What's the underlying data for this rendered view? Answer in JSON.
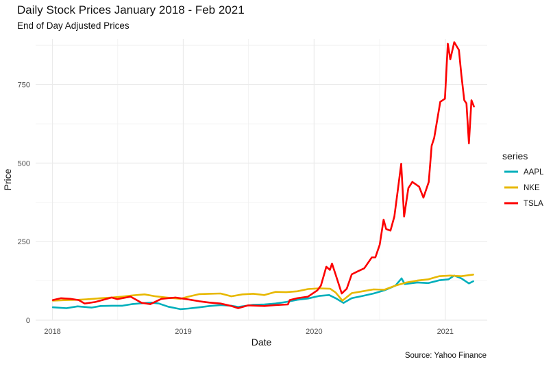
{
  "chart_data": {
    "type": "line",
    "title": "Daily Stock Prices January 2018 - Feb 2021",
    "subtitle": "End of Day Adjusted Prices",
    "caption": "Source: Yahoo Finance",
    "xlabel": "Date",
    "ylabel": "Price",
    "xlim": [
      "2017-11-15",
      "2021-04-28"
    ],
    "ylim": [
      0,
      895
    ],
    "x_ticks": [
      "2018",
      "2019",
      "2020",
      "2021"
    ],
    "y_ticks": [
      0,
      250,
      500,
      750
    ],
    "grid": true,
    "legend": {
      "title": "series",
      "position": "right"
    },
    "series": [
      {
        "name": "AAPL",
        "color": "#00AFBB",
        "points": [
          [
            "2018-01-02",
            41
          ],
          [
            "2018-02-09",
            38
          ],
          [
            "2018-03-12",
            44
          ],
          [
            "2018-04-20",
            40
          ],
          [
            "2018-05-15",
            45
          ],
          [
            "2018-06-15",
            46
          ],
          [
            "2018-07-15",
            46
          ],
          [
            "2018-08-10",
            51
          ],
          [
            "2018-09-10",
            54
          ],
          [
            "2018-10-03",
            56
          ],
          [
            "2018-10-25",
            53
          ],
          [
            "2018-11-20",
            43
          ],
          [
            "2018-12-24",
            35
          ],
          [
            "2019-01-15",
            37
          ],
          [
            "2019-02-15",
            41
          ],
          [
            "2019-03-15",
            45
          ],
          [
            "2019-04-15",
            48
          ],
          [
            "2019-05-15",
            46
          ],
          [
            "2019-06-03",
            42
          ],
          [
            "2019-07-15",
            49
          ],
          [
            "2019-08-15",
            50
          ],
          [
            "2019-09-15",
            53
          ],
          [
            "2019-10-15",
            58
          ],
          [
            "2019-11-15",
            65
          ],
          [
            "2019-12-15",
            69
          ],
          [
            "2020-01-15",
            77
          ],
          [
            "2020-02-12",
            80
          ],
          [
            "2020-03-01",
            70
          ],
          [
            "2020-03-23",
            55
          ],
          [
            "2020-04-15",
            70
          ],
          [
            "2020-05-15",
            77
          ],
          [
            "2020-06-15",
            85
          ],
          [
            "2020-07-15",
            95
          ],
          [
            "2020-08-15",
            110
          ],
          [
            "2020-09-01",
            133
          ],
          [
            "2020-09-10",
            115
          ],
          [
            "2020-10-15",
            120
          ],
          [
            "2020-11-15",
            118
          ],
          [
            "2020-12-15",
            127
          ],
          [
            "2021-01-10",
            130
          ],
          [
            "2021-01-26",
            142
          ],
          [
            "2021-02-15",
            133
          ],
          [
            "2021-03-08",
            117
          ],
          [
            "2021-03-20",
            124
          ]
        ]
      },
      {
        "name": "NKE",
        "color": "#E7B800",
        "points": [
          [
            "2018-01-02",
            62
          ],
          [
            "2018-02-10",
            64
          ],
          [
            "2018-03-15",
            65
          ],
          [
            "2018-04-15",
            67
          ],
          [
            "2018-05-15",
            70
          ],
          [
            "2018-06-15",
            72
          ],
          [
            "2018-07-15",
            75
          ],
          [
            "2018-08-15",
            79
          ],
          [
            "2018-09-15",
            82
          ],
          [
            "2018-10-15",
            76
          ],
          [
            "2018-11-15",
            72
          ],
          [
            "2018-12-24",
            68
          ],
          [
            "2019-01-15",
            75
          ],
          [
            "2019-02-15",
            83
          ],
          [
            "2019-03-15",
            84
          ],
          [
            "2019-04-15",
            85
          ],
          [
            "2019-05-15",
            76
          ],
          [
            "2019-06-15",
            82
          ],
          [
            "2019-07-15",
            84
          ],
          [
            "2019-08-15",
            80
          ],
          [
            "2019-09-15",
            90
          ],
          [
            "2019-10-15",
            89
          ],
          [
            "2019-11-15",
            92
          ],
          [
            "2019-12-15",
            99
          ],
          [
            "2020-01-15",
            101
          ],
          [
            "2020-02-15",
            100
          ],
          [
            "2020-03-01",
            88
          ],
          [
            "2020-03-20",
            62
          ],
          [
            "2020-04-15",
            86
          ],
          [
            "2020-05-15",
            92
          ],
          [
            "2020-06-15",
            98
          ],
          [
            "2020-07-15",
            97
          ],
          [
            "2020-08-15",
            110
          ],
          [
            "2020-09-15",
            120
          ],
          [
            "2020-10-15",
            126
          ],
          [
            "2020-11-15",
            130
          ],
          [
            "2020-12-15",
            140
          ],
          [
            "2021-01-15",
            142
          ],
          [
            "2021-02-15",
            140
          ],
          [
            "2021-03-20",
            145
          ]
        ]
      },
      {
        "name": "TSLA",
        "color": "#FC0000",
        "points": [
          [
            "2018-01-02",
            64
          ],
          [
            "2018-01-25",
            70
          ],
          [
            "2018-02-20",
            68
          ],
          [
            "2018-03-15",
            64
          ],
          [
            "2018-04-01",
            53
          ],
          [
            "2018-05-01",
            58
          ],
          [
            "2018-06-15",
            72
          ],
          [
            "2018-07-01",
            67
          ],
          [
            "2018-08-07",
            75
          ],
          [
            "2018-09-07",
            55
          ],
          [
            "2018-10-01",
            51
          ],
          [
            "2018-11-01",
            68
          ],
          [
            "2018-12-10",
            72
          ],
          [
            "2019-01-15",
            66
          ],
          [
            "2019-02-15",
            60
          ],
          [
            "2019-03-15",
            56
          ],
          [
            "2019-04-15",
            53
          ],
          [
            "2019-05-15",
            45
          ],
          [
            "2019-06-03",
            38
          ],
          [
            "2019-07-01",
            47
          ],
          [
            "2019-08-15",
            45
          ],
          [
            "2019-09-15",
            48
          ],
          [
            "2019-10-20",
            50
          ],
          [
            "2019-10-25",
            64
          ],
          [
            "2019-11-15",
            70
          ],
          [
            "2019-12-15",
            75
          ],
          [
            "2020-01-10",
            95
          ],
          [
            "2020-01-20",
            110
          ],
          [
            "2020-02-04",
            170
          ],
          [
            "2020-02-14",
            160
          ],
          [
            "2020-02-20",
            180
          ],
          [
            "2020-03-01",
            145
          ],
          [
            "2020-03-18",
            85
          ],
          [
            "2020-04-01",
            100
          ],
          [
            "2020-04-15",
            146
          ],
          [
            "2020-05-01",
            155
          ],
          [
            "2020-05-20",
            165
          ],
          [
            "2020-06-10",
            200
          ],
          [
            "2020-06-20",
            200
          ],
          [
            "2020-07-02",
            240
          ],
          [
            "2020-07-13",
            320
          ],
          [
            "2020-07-20",
            290
          ],
          [
            "2020-08-01",
            285
          ],
          [
            "2020-08-12",
            330
          ],
          [
            "2020-08-20",
            400
          ],
          [
            "2020-08-31",
            498
          ],
          [
            "2020-09-08",
            330
          ],
          [
            "2020-09-20",
            420
          ],
          [
            "2020-10-01",
            440
          ],
          [
            "2020-10-20",
            425
          ],
          [
            "2020-11-01",
            390
          ],
          [
            "2020-11-16",
            440
          ],
          [
            "2020-11-24",
            555
          ],
          [
            "2020-12-01",
            580
          ],
          [
            "2020-12-18",
            695
          ],
          [
            "2020-12-31",
            705
          ],
          [
            "2021-01-08",
            880
          ],
          [
            "2021-01-15",
            830
          ],
          [
            "2021-01-26",
            885
          ],
          [
            "2021-02-08",
            860
          ],
          [
            "2021-02-15",
            780
          ],
          [
            "2021-02-23",
            700
          ],
          [
            "2021-03-01",
            690
          ],
          [
            "2021-03-08",
            563
          ],
          [
            "2021-03-15",
            700
          ],
          [
            "2021-03-22",
            680
          ]
        ]
      }
    ]
  }
}
